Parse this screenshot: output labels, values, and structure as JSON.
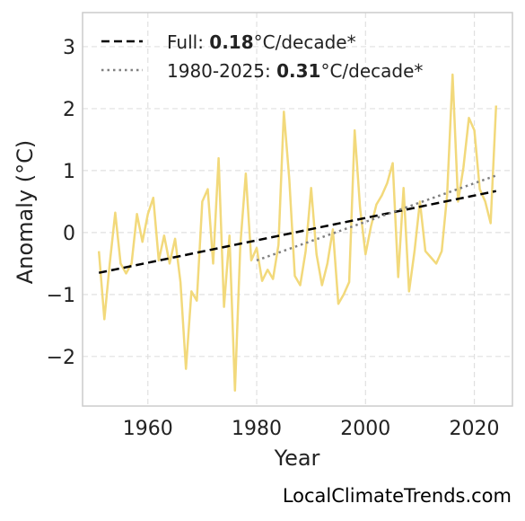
{
  "chart_data": {
    "type": "line",
    "xlabel": "Year",
    "ylabel": "Anomaly (°C)",
    "xlim": [
      1948,
      2027
    ],
    "ylim": [
      -2.8,
      3.55
    ],
    "x_ticks": [
      "1960",
      "1980",
      "2000",
      "2020"
    ],
    "x_tick_values": [
      1960,
      1980,
      2000,
      2020
    ],
    "y_ticks": [
      "3",
      "2",
      "1",
      "0",
      "−1",
      "−2"
    ],
    "y_tick_values": [
      3,
      2,
      1,
      0,
      -1,
      -2
    ],
    "grid": true,
    "legend_position": "top-left",
    "series": [
      {
        "color": "#f2d97b",
        "x": [
          1951,
          1952,
          1953,
          1954,
          1955,
          1956,
          1957,
          1958,
          1959,
          1960,
          1961,
          1962,
          1963,
          1964,
          1965,
          1966,
          1967,
          1968,
          1969,
          1970,
          1971,
          1972,
          1973,
          1974,
          1975,
          1976,
          1977,
          1978,
          1979,
          1980,
          1981,
          1982,
          1983,
          1984,
          1985,
          1986,
          1987,
          1988,
          1989,
          1990,
          1991,
          1992,
          1993,
          1994,
          1995,
          1996,
          1997,
          1998,
          1999,
          2000,
          2001,
          2002,
          2003,
          2004,
          2005,
          2006,
          2007,
          2008,
          2009,
          2010,
          2011,
          2012,
          2013,
          2014,
          2015,
          2016,
          2017,
          2018,
          2019,
          2020,
          2021,
          2022,
          2023,
          2024
        ],
        "values": [
          -0.3,
          -1.4,
          -0.5,
          0.32,
          -0.5,
          -0.66,
          -0.5,
          0.3,
          -0.15,
          0.3,
          0.56,
          -0.45,
          -0.05,
          -0.5,
          -0.1,
          -0.8,
          -2.2,
          -0.95,
          -1.1,
          0.5,
          0.7,
          -0.5,
          1.2,
          -1.2,
          -0.05,
          -2.55,
          -0.2,
          0.95,
          -0.45,
          -0.25,
          -0.78,
          -0.6,
          -0.75,
          -0.2,
          1.95,
          0.85,
          -0.7,
          -0.85,
          -0.3,
          0.72,
          -0.35,
          -0.85,
          -0.5,
          0.05,
          -1.15,
          -1.0,
          -0.8,
          1.65,
          0.4,
          -0.35,
          0.1,
          0.45,
          0.6,
          0.8,
          1.12,
          -0.72,
          0.72,
          -0.95,
          -0.3,
          0.5,
          -0.3,
          -0.4,
          -0.5,
          -0.3,
          0.6,
          2.55,
          0.5,
          1.05,
          1.85,
          1.65,
          0.7,
          0.5,
          0.15,
          2.05
        ]
      },
      {
        "name": "Full: 0.18°C/decade*",
        "color": "#000000",
        "style": "dashed",
        "x": [
          1951,
          2024
        ],
        "values": [
          -0.65,
          0.67
        ]
      },
      {
        "name": "1980-2025: 0.31°C/decade*",
        "color": "#808080",
        "style": "dotted",
        "x": [
          1980,
          2024
        ],
        "values": [
          -0.45,
          0.92
        ]
      }
    ]
  },
  "legend": [
    {
      "prefix": "Full: ",
      "value": "0.18",
      "suffix": "°C/decade*"
    },
    {
      "prefix": "1980-2025: ",
      "value": "0.31",
      "suffix": "°C/decade*"
    }
  ],
  "credit": "LocalClimateTrends.com"
}
